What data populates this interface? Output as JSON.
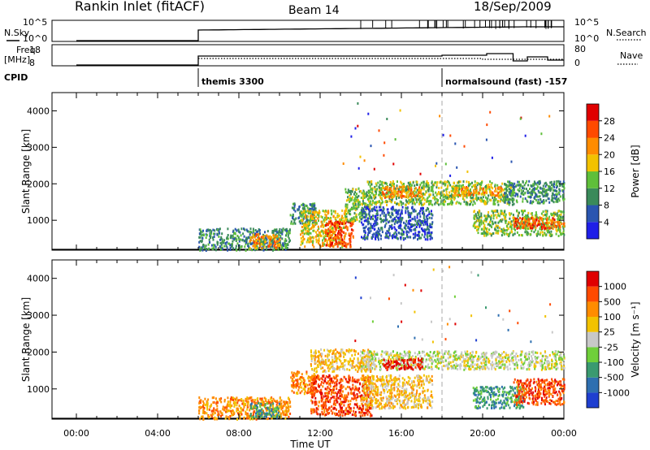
{
  "header": {
    "title": "Rankin Inlet (fitACF)",
    "beam": "Beam 14",
    "date": "18/Sep/2009"
  },
  "top_panels": {
    "nsky_label": "N.Sky",
    "nsky_ticks": [
      "10^5",
      "10^0"
    ],
    "nsearch_label": "N.Search",
    "nsearch_ticks": [
      "10^5",
      "10^0"
    ],
    "freq_label_1": "Freq.",
    "freq_label_2": "[MHz]",
    "freq_ticks": [
      "18",
      "8"
    ],
    "nave_label": "Nave",
    "nave_ticks": [
      "80",
      "0"
    ],
    "cpid_label": "CPID",
    "cpid_modes": [
      {
        "label": "themis 3300",
        "start_hour": 6.0
      },
      {
        "label": "normalsound (fast) -157",
        "start_hour": 18.0
      }
    ]
  },
  "x_axis": {
    "label": "Time UT",
    "tick_labels": [
      "00:00",
      "04:00",
      "08:00",
      "12:00",
      "16:00",
      "20:00",
      "00:00"
    ],
    "range_hours": [
      0,
      24
    ]
  },
  "chart_data": [
    {
      "type": "heatmap",
      "name": "power",
      "ylabel": "Slant Range [km]",
      "y_ticks": [
        1000,
        2000,
        3000,
        4000
      ],
      "ylim": [
        180,
        4500
      ],
      "xlim": [
        0,
        24
      ],
      "colorbar": {
        "label": "Power [dB]",
        "tick_labels": [
          "4",
          "8",
          "12",
          "16",
          "20",
          "24",
          "28"
        ],
        "colors": [
          "#1f1fe8",
          "#2a55b0",
          "#3a8a5a",
          "#5fbf3a",
          "#f2c200",
          "#ff8c00",
          "#ff4a00",
          "#e00000"
        ]
      },
      "regions": [
        {
          "t0": 6.0,
          "t1": 10.5,
          "r0": 200,
          "r1": 800,
          "level": 2
        },
        {
          "t0": 8.5,
          "t1": 10.0,
          "r0": 250,
          "r1": 650,
          "level": 5
        },
        {
          "t0": 10.5,
          "t1": 11.8,
          "r0": 900,
          "r1": 1500,
          "level": 2
        },
        {
          "t0": 11.0,
          "t1": 13.2,
          "r0": 300,
          "r1": 1300,
          "level": 4
        },
        {
          "t0": 12.2,
          "t1": 13.6,
          "r0": 300,
          "r1": 1000,
          "level": 6
        },
        {
          "t0": 13.2,
          "t1": 14.5,
          "r0": 1000,
          "r1": 1900,
          "level": 3
        },
        {
          "t0": 14.3,
          "t1": 21.5,
          "r0": 1450,
          "r1": 2100,
          "level": 3
        },
        {
          "t0": 15.0,
          "t1": 17.0,
          "r0": 1650,
          "r1": 1950,
          "level": 5
        },
        {
          "t0": 18.5,
          "t1": 21.0,
          "r0": 1700,
          "r1": 1950,
          "level": 5
        },
        {
          "t0": 21.0,
          "t1": 24.0,
          "r0": 1500,
          "r1": 2100,
          "level": 2
        },
        {
          "t0": 14.0,
          "t1": 17.5,
          "r0": 500,
          "r1": 1400,
          "level": 1
        },
        {
          "t0": 19.5,
          "t1": 24.0,
          "r0": 600,
          "r1": 1300,
          "level": 3
        },
        {
          "t0": 21.5,
          "t1": 24.0,
          "r0": 800,
          "r1": 1100,
          "level": 6
        }
      ]
    },
    {
      "type": "heatmap",
      "name": "velocity",
      "ylabel": "Slant Range [km]",
      "y_ticks": [
        1000,
        2000,
        3000,
        4000
      ],
      "ylim": [
        180,
        4500
      ],
      "xlim": [
        0,
        24
      ],
      "colorbar": {
        "label": "Velocity [m s⁻¹]",
        "tick_labels": [
          "1000",
          "500",
          "100",
          "25",
          "-25",
          "-100",
          "-500",
          "-1000"
        ],
        "colors": [
          "#1f3fd0",
          "#2e6fb0",
          "#3a9a70",
          "#6fcf3a",
          "#c8c8c8",
          "#f2c200",
          "#ff8c00",
          "#ff4a00",
          "#e00000"
        ]
      },
      "regions": [
        {
          "t0": 6.0,
          "t1": 10.5,
          "r0": 200,
          "r1": 800,
          "level": 6
        },
        {
          "t0": 8.5,
          "t1": 10.0,
          "r0": 250,
          "r1": 650,
          "level": 2
        },
        {
          "t0": 10.5,
          "t1": 11.8,
          "r0": 900,
          "r1": 1500,
          "level": 6
        },
        {
          "t0": 11.5,
          "t1": 14.5,
          "r0": 300,
          "r1": 1400,
          "level": 7
        },
        {
          "t0": 11.5,
          "t1": 14.5,
          "r0": 1500,
          "r1": 2100,
          "level": 5
        },
        {
          "t0": 14.0,
          "t1": 24.0,
          "r0": 1550,
          "r1": 2050,
          "level": 4
        },
        {
          "t0": 15.0,
          "t1": 17.0,
          "r0": 1550,
          "r1": 1850,
          "level": 8
        },
        {
          "t0": 14.0,
          "t1": 17.5,
          "r0": 500,
          "r1": 1400,
          "level": 5
        },
        {
          "t0": 19.5,
          "t1": 22.0,
          "r0": 500,
          "r1": 1100,
          "level": 2
        },
        {
          "t0": 21.5,
          "t1": 24.0,
          "r0": 600,
          "r1": 1300,
          "level": 7
        }
      ]
    }
  ]
}
